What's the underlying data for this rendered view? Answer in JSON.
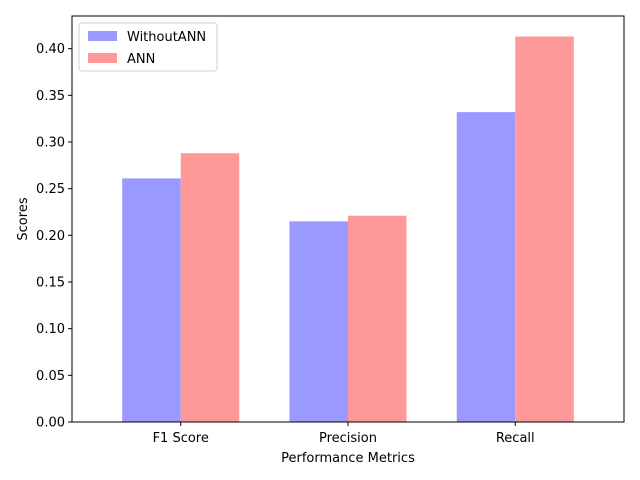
{
  "chart_data": {
    "type": "bar",
    "categories": [
      "F1 Score",
      "Precision",
      "Recall"
    ],
    "series": [
      {
        "name": "WithoutANN",
        "values": [
          0.261,
          0.215,
          0.332
        ],
        "color": "#9999ff"
      },
      {
        "name": "ANN",
        "values": [
          0.288,
          0.221,
          0.413
        ],
        "color": "#ff9999"
      }
    ],
    "xlabel": "Performance Metrics",
    "ylabel": "Scores",
    "ylim": [
      0,
      0.435
    ],
    "yticks": [
      0.0,
      0.05,
      0.1,
      0.15,
      0.2,
      0.25,
      0.3,
      0.35,
      0.4
    ],
    "ytick_labels": [
      "0.00",
      "0.05",
      "0.10",
      "0.15",
      "0.20",
      "0.25",
      "0.30",
      "0.35",
      "0.40"
    ],
    "grid": false,
    "legend_position": "top-left"
  }
}
